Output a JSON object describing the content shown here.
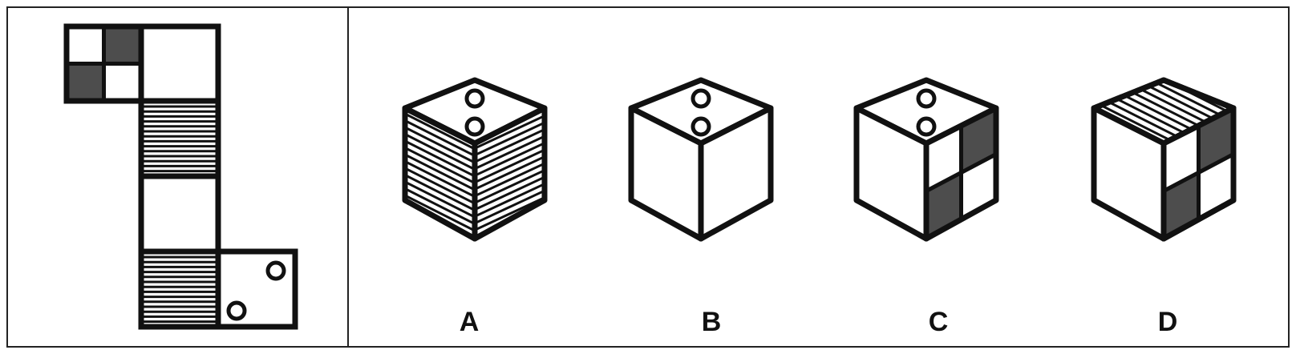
{
  "colors": {
    "stroke": "#111111",
    "dark_fill": "#4d4d4d",
    "background": "#ffffff"
  },
  "net": {
    "faces": [
      "checkered",
      "blank",
      "striped",
      "blank",
      "striped",
      "two-circles"
    ]
  },
  "options": [
    {
      "label": "A",
      "top": "two-circles",
      "left": "striped",
      "right": "striped"
    },
    {
      "label": "B",
      "top": "two-circles",
      "left": "blank",
      "right": "blank"
    },
    {
      "label": "C",
      "top": "two-circles",
      "left": "blank",
      "right": "checkered"
    },
    {
      "label": "D",
      "top": "striped",
      "left": "blank",
      "right": "checkered"
    }
  ]
}
